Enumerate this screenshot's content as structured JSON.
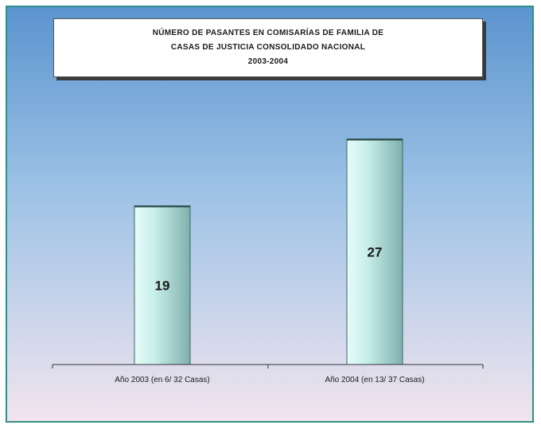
{
  "chart_data": {
    "type": "bar",
    "title_lines": [
      "NÚMERO DE PASANTES EN COMISARÍAS DE FAMILIA DE",
      "CASAS DE JUSTICIA CONSOLIDADO NACIONAL",
      "2003-2004"
    ],
    "categories": [
      "Año 2003 (en 6/ 32 Casas)",
      "Año 2004 (en 13/ 37 Casas)"
    ],
    "values": [
      19,
      27
    ],
    "ylim": [
      0,
      40
    ],
    "grid": false,
    "legend": "none",
    "xlabel": "",
    "ylabel": ""
  },
  "colors": {
    "background_top": "#5b94cf",
    "background_bottom": "#f1e4ee",
    "frame_border": "#2f8f86",
    "bar_light": "#e6fbf8",
    "bar_dark": "#7fb0ae"
  }
}
